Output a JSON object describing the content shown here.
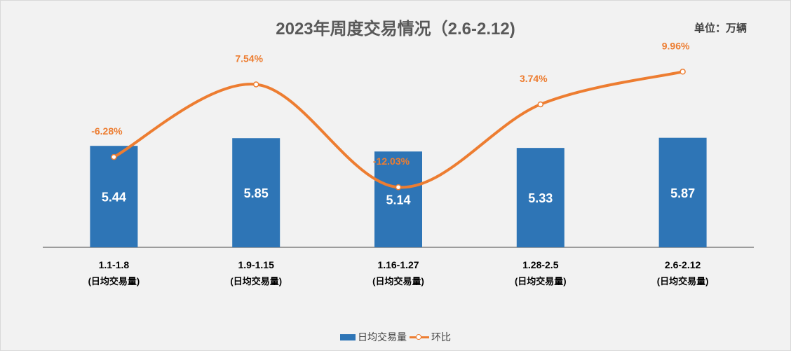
{
  "chart_data": {
    "type": "bar",
    "title": "2023年周度交易情况（2.6-2.12)",
    "unit_label": "单位：万辆",
    "categories": [
      "1.1-1.8",
      "1.9-1.15",
      "1.16-1.27",
      "1.28-2.5",
      "2.6-2.12"
    ],
    "category_sublabel": "(日均交易量)",
    "series": [
      {
        "name": "日均交易量",
        "type": "bar",
        "color": "#2e75b6",
        "values": [
          5.44,
          5.85,
          5.14,
          5.33,
          5.87
        ],
        "value_labels": [
          "5.44",
          "5.85",
          "5.14",
          "5.33",
          "5.87"
        ]
      },
      {
        "name": "环比",
        "type": "line",
        "color": "#ed7d31",
        "values": [
          -6.28,
          7.54,
          -12.03,
          3.74,
          9.96
        ],
        "value_labels": [
          "-6.28%",
          "7.54%",
          "-12.03%",
          "3.74%",
          "9.96%"
        ]
      }
    ],
    "legend_position": "bottom",
    "grid": false
  }
}
